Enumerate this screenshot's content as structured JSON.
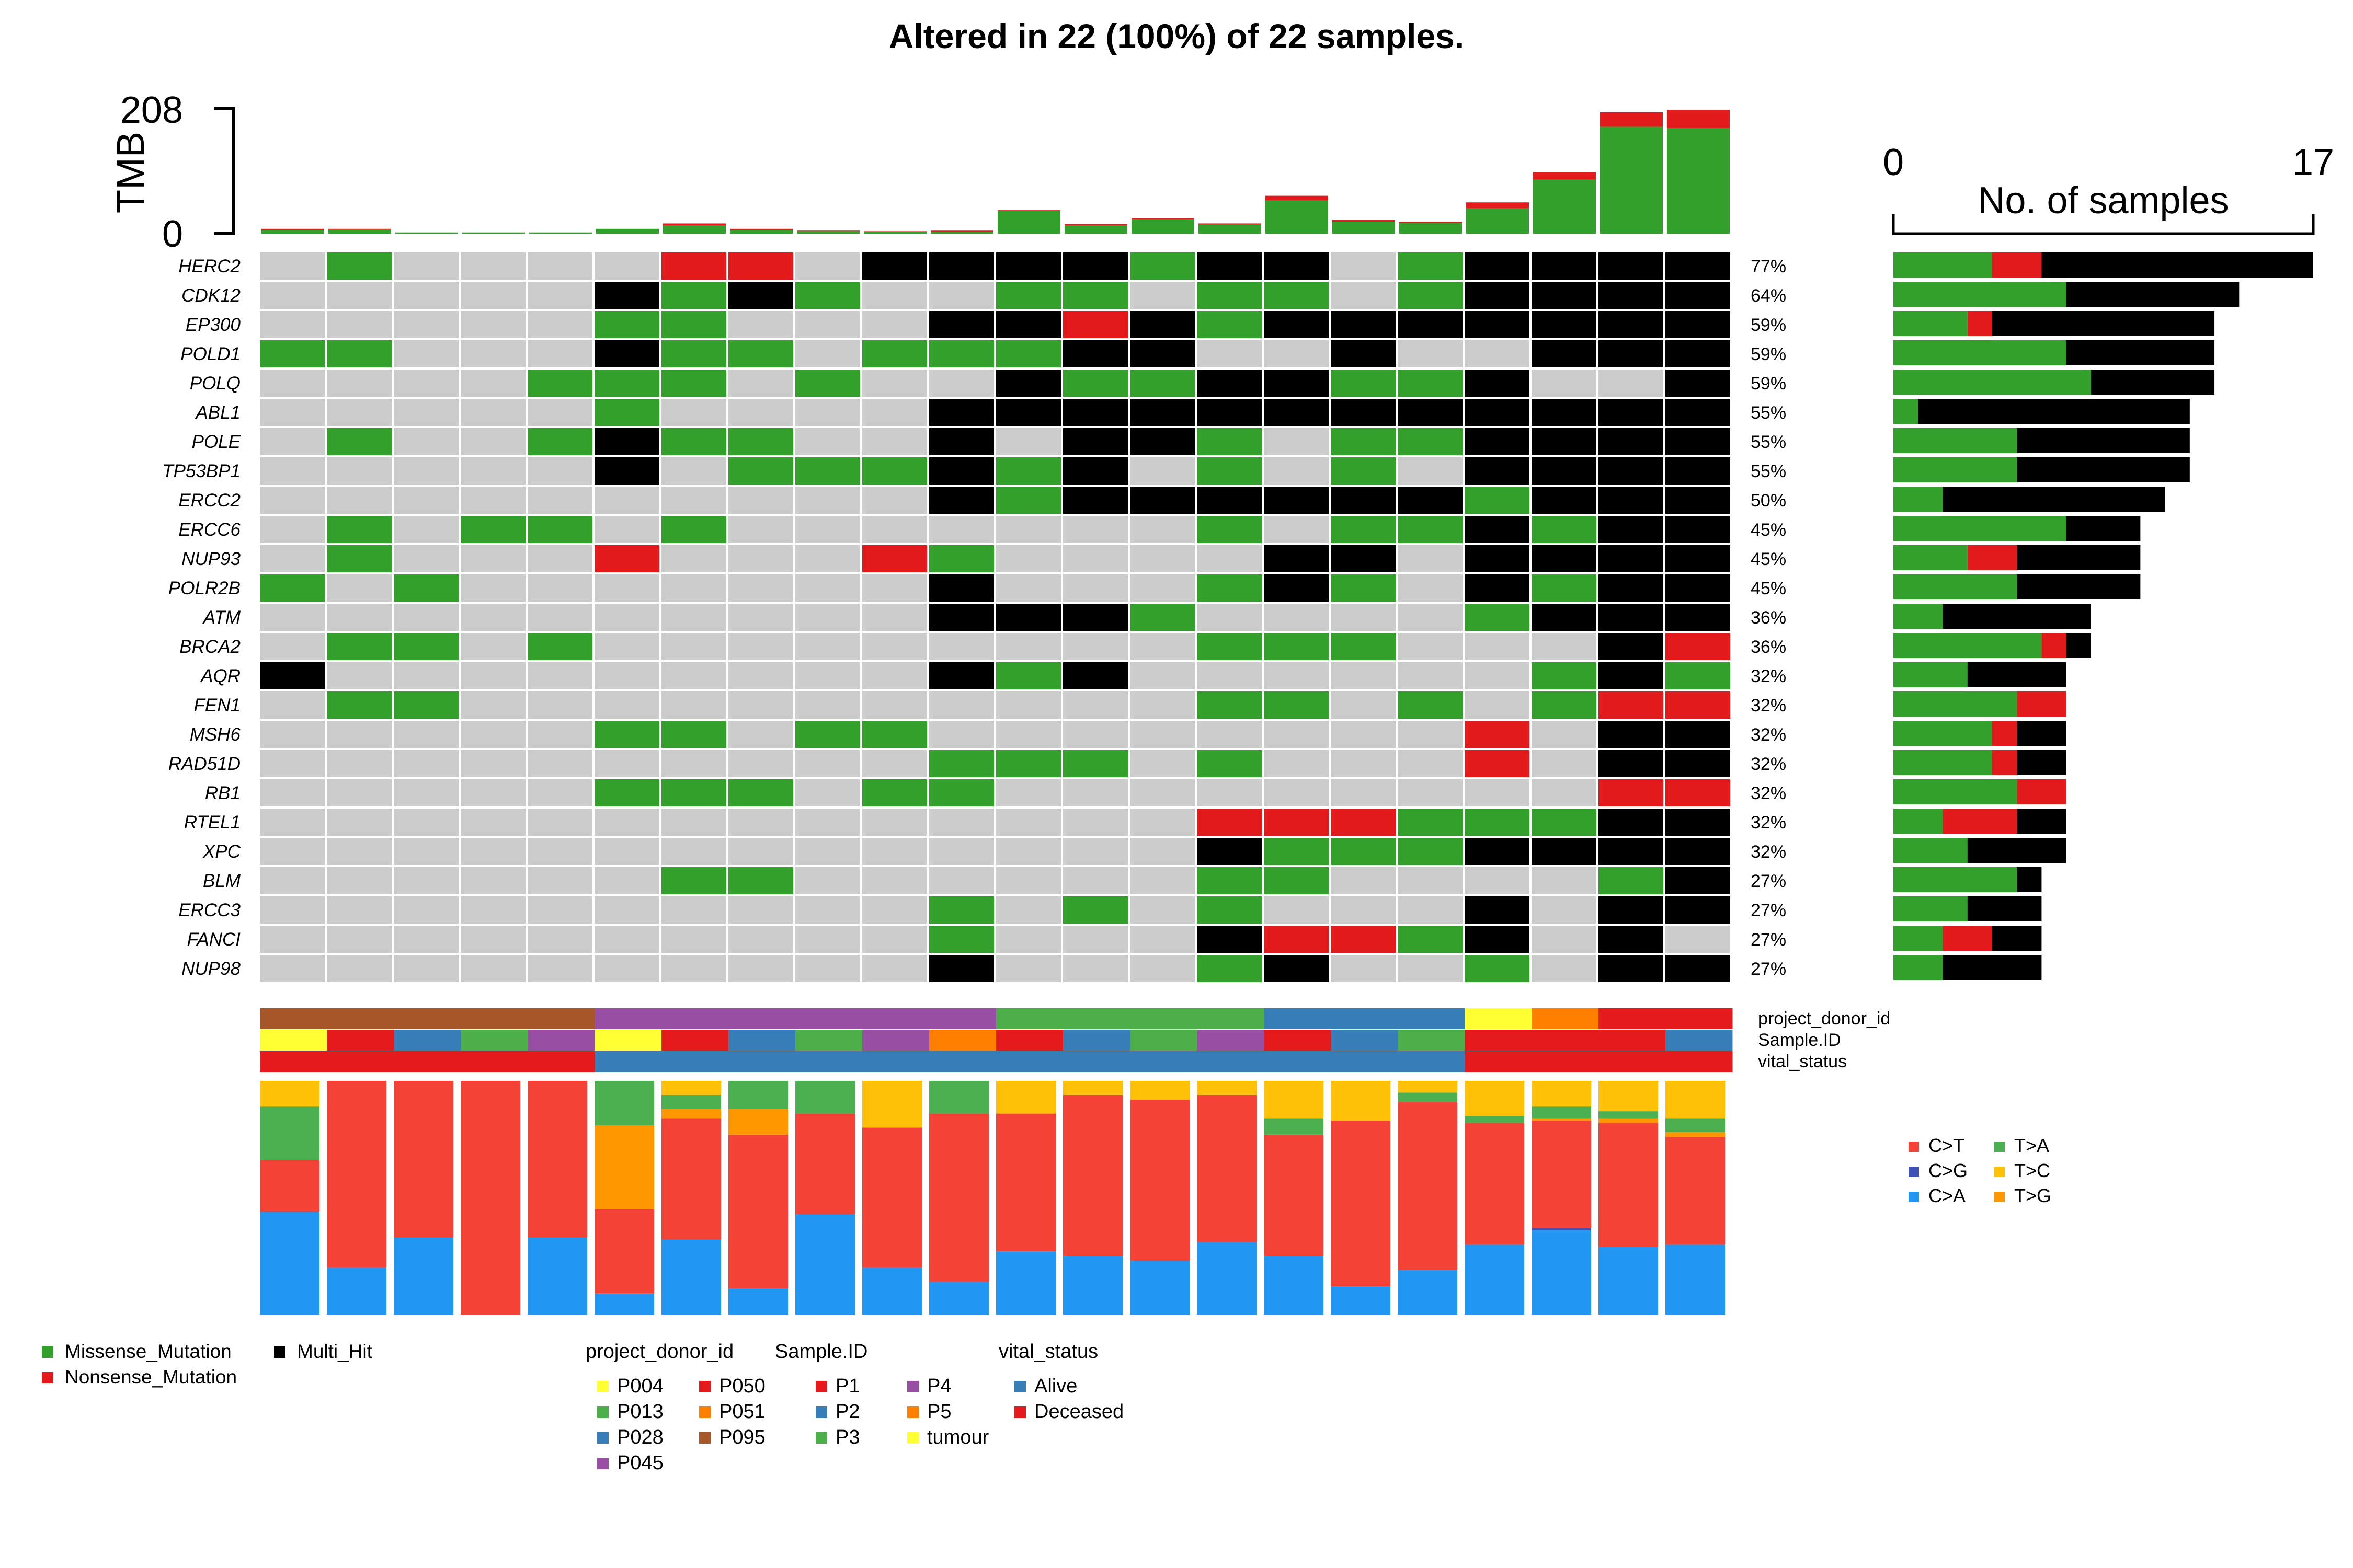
{
  "title": "Altered in 22 (100%) of 22 samples.",
  "colors": {
    "Missense_Mutation": "#33A02C",
    "Nonsense_Mutation": "#E31A1C",
    "Multi_Hit": "#000000",
    "none": "#CCCCCC",
    "C>T": "#F44336",
    "C>G": "#3F51B5",
    "C>A": "#2196F3",
    "T>A": "#4CAF50",
    "T>C": "#FFC107",
    "T>G": "#FF9800",
    "P004": "#FFFF33",
    "P013": "#4DAF4A",
    "P028": "#377EB8",
    "P045": "#984EA3",
    "P050": "#E41A1C",
    "P051": "#FF7F00",
    "P095": "#A65628",
    "P1": "#E41A1C",
    "P2": "#377EB8",
    "P3": "#4DAF4A",
    "P4": "#984EA3",
    "P5": "#FF7F00",
    "tumour": "#FFFF33",
    "Alive": "#377EB8",
    "Deceased": "#E41A1C"
  },
  "chart_data": [
    {
      "type": "bar",
      "role": "tmb",
      "ylabel": "TMB",
      "ylim": [
        0,
        208
      ],
      "ticks": [
        "0",
        "208"
      ],
      "series": [
        {
          "key": "Missense_Mutation",
          "values": [
            6,
            7,
            2,
            2,
            2,
            8,
            14,
            6,
            4,
            3,
            3,
            38,
            14,
            24,
            15,
            55,
            20,
            18,
            42,
            90,
            178,
            176
          ]
        },
        {
          "key": "Nonsense_Mutation",
          "values": [
            2,
            1,
            0,
            0,
            0,
            0,
            3,
            2,
            1,
            1,
            2,
            1,
            2,
            2,
            2,
            8,
            3,
            2,
            10,
            12,
            24,
            30
          ]
        }
      ]
    },
    {
      "type": "heatmap",
      "role": "oncoplot",
      "genes": [
        "HERC2",
        "CDK12",
        "EP300",
        "POLD1",
        "POLQ",
        "ABL1",
        "POLE",
        "TP53BP1",
        "ERCC2",
        "ERCC6",
        "NUP93",
        "POLR2B",
        "ATM",
        "BRCA2",
        "AQR",
        "FEN1",
        "MSH6",
        "RAD51D",
        "RB1",
        "RTEL1",
        "XPC",
        "BLM",
        "ERCC3",
        "FANCI",
        "NUP98"
      ],
      "percent": [
        "77%",
        "64%",
        "59%",
        "59%",
        "59%",
        "55%",
        "55%",
        "55%",
        "50%",
        "45%",
        "45%",
        "45%",
        "36%",
        "36%",
        "32%",
        "32%",
        "32%",
        "32%",
        "32%",
        "32%",
        "32%",
        "27%",
        "27%",
        "27%",
        "27%"
      ],
      "legend": {
        "0": "none",
        "1": "Missense_Mutation",
        "2": "Nonsense_Mutation",
        "3": "Multi_Hit"
      },
      "matrix": [
        "0100002203333133013333",
        "0000031310011011013333",
        "0000011000332313333333",
        "1100031101113300300333",
        "0000111010031133113003",
        "0000010000333333333333",
        "0100131100303310113333",
        "0000030111313010103333",
        "0000000000313333331333",
        "0101101000000010113133",
        "0100020002100003303333",
        "1010000000300013103133",
        "0000000000333100001333",
        "0110100000000011100032",
        "3000000000313000000131",
        "0110000000000011010122",
        "0000011011000000002033",
        "0000000000111010002033",
        "0000011101100000000022",
        "0000000000000022211133",
        "0000000000000031113333",
        "0000001100000011000013",
        "0000000000101010003033",
        "0000000000100032213030",
        "0000000000300013001033"
      ]
    },
    {
      "type": "bar",
      "role": "gene-counts",
      "xlabel": "No. of samples",
      "xlim": [
        0,
        17
      ],
      "ticks": [
        "0",
        "17"
      ],
      "series": [
        {
          "key": "Missense_Mutation",
          "values": [
            4,
            7,
            3,
            7,
            8,
            1,
            5,
            5,
            2,
            7,
            3,
            5,
            2,
            6,
            3,
            5,
            4,
            4,
            5,
            2,
            3,
            5,
            3,
            2,
            2
          ]
        },
        {
          "key": "Nonsense_Mutation",
          "values": [
            2,
            0,
            1,
            0,
            0,
            0,
            0,
            0,
            0,
            0,
            2,
            0,
            0,
            1,
            0,
            2,
            1,
            1,
            2,
            3,
            0,
            0,
            0,
            2,
            0
          ]
        },
        {
          "key": "Multi_Hit",
          "values": [
            11,
            7,
            9,
            6,
            5,
            11,
            7,
            7,
            9,
            3,
            5,
            5,
            6,
            1,
            4,
            0,
            2,
            2,
            0,
            2,
            4,
            1,
            3,
            2,
            4
          ]
        }
      ]
    },
    {
      "type": "bar",
      "role": "titv-fractions",
      "classes": [
        "C>T",
        "C>G",
        "C>A",
        "T>A",
        "T>C",
        "T>G"
      ],
      "stack_order": [
        "C>A",
        "C>G",
        "C>T",
        "T>G",
        "T>A",
        "T>C"
      ],
      "samples": [
        {
          "C>A": 0.44,
          "C>G": 0,
          "C>T": 0.22,
          "T>G": 0,
          "T>A": 0.23,
          "T>C": 0.11
        },
        {
          "C>A": 0.2,
          "C>G": 0,
          "C>T": 0.8,
          "T>G": 0,
          "T>A": 0,
          "T>C": 0
        },
        {
          "C>A": 0.33,
          "C>G": 0,
          "C>T": 0.67,
          "T>G": 0,
          "T>A": 0,
          "T>C": 0
        },
        {
          "C>A": 0,
          "C>G": 0,
          "C>T": 1.0,
          "T>G": 0,
          "T>A": 0,
          "T>C": 0
        },
        {
          "C>A": 0.33,
          "C>G": 0,
          "C>T": 0.67,
          "T>G": 0,
          "T>A": 0,
          "T>C": 0
        },
        {
          "C>A": 0.09,
          "C>G": 0,
          "C>T": 0.36,
          "T>G": 0.36,
          "T>A": 0.19,
          "T>C": 0
        },
        {
          "C>A": 0.32,
          "C>G": 0,
          "C>T": 0.52,
          "T>G": 0.04,
          "T>A": 0.06,
          "T>C": 0.06
        },
        {
          "C>A": 0.11,
          "C>G": 0,
          "C>T": 0.66,
          "T>G": 0.11,
          "T>A": 0.12,
          "T>C": 0
        },
        {
          "C>A": 0.43,
          "C>G": 0,
          "C>T": 0.43,
          "T>G": 0,
          "T>A": 0.14,
          "T>C": 0
        },
        {
          "C>A": 0.2,
          "C>G": 0,
          "C>T": 0.6,
          "T>G": 0,
          "T>A": 0,
          "T>C": 0.2
        },
        {
          "C>A": 0.14,
          "C>G": 0,
          "C>T": 0.72,
          "T>G": 0,
          "T>A": 0.14,
          "T>C": 0
        },
        {
          "C>A": 0.27,
          "C>G": 0,
          "C>T": 0.59,
          "T>G": 0,
          "T>A": 0,
          "T>C": 0.14
        },
        {
          "C>A": 0.25,
          "C>G": 0,
          "C>T": 0.69,
          "T>G": 0,
          "T>A": 0,
          "T>C": 0.06
        },
        {
          "C>A": 0.23,
          "C>G": 0,
          "C>T": 0.69,
          "T>G": 0,
          "T>A": 0,
          "T>C": 0.08
        },
        {
          "C>A": 0.31,
          "C>G": 0,
          "C>T": 0.63,
          "T>G": 0,
          "T>A": 0,
          "T>C": 0.06
        },
        {
          "C>A": 0.25,
          "C>G": 0,
          "C>T": 0.52,
          "T>G": 0,
          "T>A": 0.07,
          "T>C": 0.16
        },
        {
          "C>A": 0.12,
          "C>G": 0,
          "C>T": 0.71,
          "T>G": 0,
          "T>A": 0,
          "T>C": 0.17
        },
        {
          "C>A": 0.19,
          "C>G": 0,
          "C>T": 0.72,
          "T>G": 0,
          "T>A": 0.04,
          "T>C": 0.05
        },
        {
          "C>A": 0.3,
          "C>G": 0,
          "C>T": 0.52,
          "T>G": 0,
          "T>A": 0.03,
          "T>C": 0.15
        },
        {
          "C>A": 0.36,
          "C>G": 0.01,
          "C>T": 0.46,
          "T>G": 0.01,
          "T>A": 0.05,
          "T>C": 0.11
        },
        {
          "C>A": 0.29,
          "C>G": 0,
          "C>T": 0.53,
          "T>G": 0.02,
          "T>A": 0.03,
          "T>C": 0.13
        },
        {
          "C>A": 0.3,
          "C>G": 0,
          "C>T": 0.46,
          "T>G": 0.02,
          "T>A": 0.06,
          "T>C": 0.16
        }
      ]
    }
  ],
  "annotations": {
    "tracks": [
      {
        "name": "project_donor_id",
        "values": [
          "P095",
          "P095",
          "P095",
          "P095",
          "P095",
          "P045",
          "P045",
          "P045",
          "P045",
          "P045",
          "P045",
          "P013",
          "P013",
          "P013",
          "P013",
          "P028",
          "P028",
          "P028",
          "P004",
          "P051",
          "P050",
          "P050"
        ]
      },
      {
        "name": "Sample.ID",
        "values": [
          "tumour",
          "P1",
          "P2",
          "P3",
          "P4",
          "tumour",
          "P1",
          "P2",
          "P3",
          "P4",
          "P5",
          "P1",
          "P2",
          "P3",
          "P4",
          "P1",
          "P2",
          "P3",
          "P1",
          "P1",
          "P1",
          "P2"
        ]
      },
      {
        "name": "vital_status",
        "values": [
          "Deceased",
          "Deceased",
          "Deceased",
          "Deceased",
          "Deceased",
          "Alive",
          "Alive",
          "Alive",
          "Alive",
          "Alive",
          "Alive",
          "Alive",
          "Alive",
          "Alive",
          "Alive",
          "Alive",
          "Alive",
          "Alive",
          "Deceased",
          "Deceased",
          "Deceased",
          "Deceased"
        ]
      }
    ]
  },
  "legends": {
    "titv": {
      "rows": [
        [
          "C>T",
          "T>A"
        ],
        [
          "C>G",
          "T>C"
        ],
        [
          "C>A",
          "T>G"
        ]
      ]
    },
    "variants": {
      "rows": [
        [
          "Missense_Mutation",
          "Multi_Hit"
        ],
        [
          "Nonsense_Mutation"
        ]
      ]
    },
    "annotation_groups": [
      {
        "title": "project_donor_id",
        "columns": [
          [
            "P004",
            "P013",
            "P028",
            "P045"
          ],
          [
            "P050",
            "P051",
            "P095"
          ]
        ]
      },
      {
        "title": "Sample.ID",
        "columns": [
          [
            "P1",
            "P2",
            "P3"
          ],
          [
            "P4",
            "P5",
            "tumour"
          ]
        ]
      },
      {
        "title": "vital_status",
        "columns": [
          [
            "Alive",
            "Deceased"
          ]
        ]
      }
    ]
  }
}
